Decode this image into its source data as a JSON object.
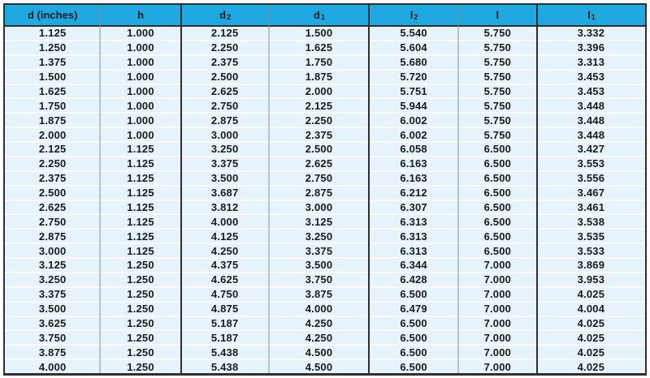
{
  "colors": {
    "header_bg": "#1FA9E1",
    "header_text": "#0E1B24",
    "row_bg": "#E7F3FB",
    "row_separator": "#FAFCFE",
    "border_dark": "#2F2F2F",
    "divider_light": "#8C8C8C",
    "cell_text": "#1B1B1B"
  },
  "chart_data": {
    "type": "table",
    "title": "",
    "columns": [
      {
        "key": "d",
        "label": "d (inches)",
        "sub": ""
      },
      {
        "key": "h",
        "label": "h",
        "sub": ""
      },
      {
        "key": "d2",
        "label": "d",
        "sub": "2"
      },
      {
        "key": "d1",
        "label": "d",
        "sub": "1"
      },
      {
        "key": "l2",
        "label": "l",
        "sub": "2"
      },
      {
        "key": "l",
        "label": "l",
        "sub": ""
      },
      {
        "key": "l1",
        "label": "l",
        "sub": "1"
      }
    ],
    "rows": [
      [
        "1.125",
        "1.000",
        "2.125",
        "1.500",
        "5.540",
        "5.750",
        "3.332"
      ],
      [
        "1.250",
        "1.000",
        "2.250",
        "1.625",
        "5.604",
        "5.750",
        "3.396"
      ],
      [
        "1.375",
        "1.000",
        "2.375",
        "1.750",
        "5.680",
        "5.750",
        "3.313"
      ],
      [
        "1.500",
        "1.000",
        "2.500",
        "1.875",
        "5.720",
        "5.750",
        "3.453"
      ],
      [
        "1.625",
        "1.000",
        "2.625",
        "2.000",
        "5.751",
        "5.750",
        "3.453"
      ],
      [
        "1.750",
        "1.000",
        "2.750",
        "2.125",
        "5.944",
        "5.750",
        "3.448"
      ],
      [
        "1.875",
        "1.000",
        "2.875",
        "2.250",
        "6.002",
        "5.750",
        "3.448"
      ],
      [
        "2.000",
        "1.000",
        "3.000",
        "2.375",
        "6.002",
        "5.750",
        "3.448"
      ],
      [
        "2.125",
        "1.125",
        "3.250",
        "2.500",
        "6.058",
        "6.500",
        "3.427"
      ],
      [
        "2.250",
        "1.125",
        "3.375",
        "2.625",
        "6.163",
        "6.500",
        "3.553"
      ],
      [
        "2.375",
        "1.125",
        "3.500",
        "2.750",
        "6.163",
        "6.500",
        "3.556"
      ],
      [
        "2.500",
        "1.125",
        "3.687",
        "2.875",
        "6.212",
        "6.500",
        "3.467"
      ],
      [
        "2.625",
        "1.125",
        "3.812",
        "3.000",
        "6.307",
        "6.500",
        "3.461"
      ],
      [
        "2.750",
        "1.125",
        "4.000",
        "3.125",
        "6.313",
        "6.500",
        "3.538"
      ],
      [
        "2.875",
        "1.125",
        "4.125",
        "3.250",
        "6.313",
        "6.500",
        "3.535"
      ],
      [
        "3.000",
        "1.125",
        "4.250",
        "3.375",
        "6.313",
        "6.500",
        "3.533"
      ],
      [
        "3.125",
        "1.250",
        "4.375",
        "3.500",
        "6.344",
        "7.000",
        "3.869"
      ],
      [
        "3.250",
        "1.250",
        "4.625",
        "3.750",
        "6.428",
        "7.000",
        "3.953"
      ],
      [
        "3.375",
        "1.250",
        "4.750",
        "3.875",
        "6.500",
        "7.000",
        "4.025"
      ],
      [
        "3.500",
        "1.250",
        "4.875",
        "4.000",
        "6.479",
        "7.000",
        "4.004"
      ],
      [
        "3.625",
        "1.250",
        "5.187",
        "4.250",
        "6.500",
        "7.000",
        "4.025"
      ],
      [
        "3.750",
        "1.250",
        "5.187",
        "4.250",
        "6.500",
        "7.000",
        "4.025"
      ],
      [
        "3.875",
        "1.250",
        "5.438",
        "4.500",
        "6.500",
        "7.000",
        "4.025"
      ],
      [
        "4.000",
        "1.250",
        "5.438",
        "4.500",
        "6.500",
        "7.000",
        "4.025"
      ]
    ]
  }
}
